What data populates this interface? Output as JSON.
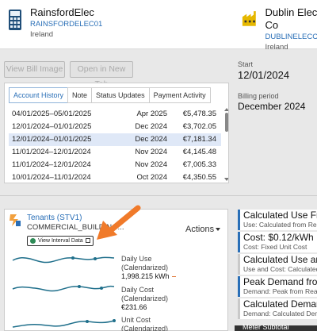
{
  "header": {
    "account1": {
      "name": "RainsfordElec",
      "code": "RAINSFORDELEC01",
      "location": "Ireland"
    },
    "account2": {
      "name": "Dublin Elec Co",
      "code": "DUBLINELECCO",
      "location": "Ireland"
    }
  },
  "toolbar": {
    "view_bill_label": "View Bill Image",
    "open_tab_label": "Open in New Tab"
  },
  "info": {
    "start_label": "Start",
    "start_value": "12/01/2024",
    "billing_label": "Billing period",
    "billing_value": "December 2024"
  },
  "history": {
    "tabs": [
      "Account History",
      "Note",
      "Status Updates",
      "Payment Activity"
    ],
    "active_tab": "Account History",
    "rows": [
      {
        "range": "04/01/2025–05/01/2025",
        "period": "Apr 2025",
        "amount": "€5,478.35"
      },
      {
        "range": "12/01/2024–01/01/2025",
        "period": "Dec 2024",
        "amount": "€3,702.05"
      },
      {
        "range": "12/01/2024–01/01/2025",
        "period": "Dec 2024",
        "amount": "€7,181.34"
      },
      {
        "range": "11/01/2024–12/01/2024",
        "period": "Nov 2024",
        "amount": "€4,145.48"
      },
      {
        "range": "11/01/2024–12/01/2024",
        "period": "Nov 2024",
        "amount": "€7,005.33"
      },
      {
        "range": "10/01/2024–11/01/2024",
        "period": "Oct 2024",
        "amount": "€4,350.55"
      }
    ],
    "selected_row": 2
  },
  "tenant": {
    "name": "Tenants (STV1)",
    "type": "COMMERCIAL_BUILDING...",
    "actions_label": "Actions",
    "interval_label": "View Interval Data"
  },
  "metrics": [
    {
      "label1": "Daily Use",
      "label2": "(Calendarized)",
      "value": "1,998.215 kWh"
    },
    {
      "label1": "Daily Cost",
      "label2": "(Calendarized)",
      "value": "€231.66"
    },
    {
      "label1": "Unit Cost",
      "label2": "(Calendarized)",
      "value": ""
    }
  ],
  "right_cards": [
    {
      "title": "Calculated Use From",
      "sub": "Use: Calculated from Read"
    },
    {
      "title": "Cost: $0.12/kWh",
      "sub": "Cost: Fixed Unit Cost"
    },
    {
      "title": "Calculated Use and",
      "sub": "Use and Cost: Calculated"
    },
    {
      "title": "Peak Demand from",
      "sub": "Demand: Peak from Read"
    },
    {
      "title": "Calculated Demand",
      "sub": "Demand: Calculated Demand"
    }
  ],
  "bottom_tab": "Meter Subtotal",
  "colors": {
    "accent": "#2a6fb7",
    "arrow": "#f07a2a",
    "sparkline": "#1f6f8b"
  }
}
